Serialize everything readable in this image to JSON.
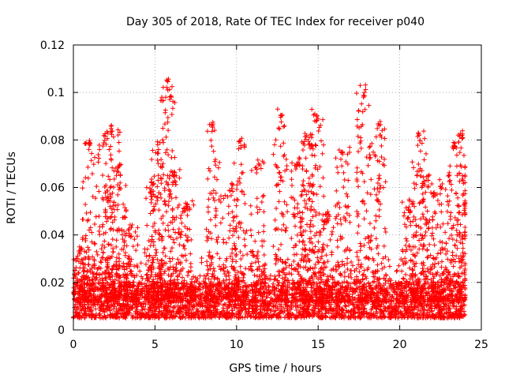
{
  "chart_data": {
    "type": "scatter",
    "title": "Day 305 of 2018, Rate Of TEC Index for receiver p040",
    "xlabel": "GPS time / hours",
    "ylabel": "ROTI / TECUs",
    "xlim": [
      0,
      25
    ],
    "ylim": [
      0,
      0.12
    ],
    "x_ticks": [
      0,
      5,
      10,
      15,
      20,
      25
    ],
    "x_tick_labels": [
      "0",
      "5",
      "10",
      "15",
      "20",
      "25"
    ],
    "y_ticks": [
      0,
      0.02,
      0.04,
      0.06,
      0.08,
      0.1,
      0.12
    ],
    "y_tick_labels": [
      "0",
      "0.02",
      "0.04",
      "0.06",
      "0.08",
      "0.1",
      "0.12"
    ],
    "grid": true,
    "marker": "+",
    "marker_color": "#ff0000",
    "series": [
      {
        "name": "ROTI",
        "x_range": [
          0,
          24
        ],
        "baseline_band": [
          0.005,
          0.02
        ],
        "bursts": [
          {
            "center": 0.5,
            "peak": 0.035
          },
          {
            "center": 1.0,
            "peak": 0.08
          },
          {
            "center": 1.9,
            "peak": 0.083
          },
          {
            "center": 2.4,
            "peak": 0.087
          },
          {
            "center": 2.8,
            "peak": 0.07
          },
          {
            "center": 3.5,
            "peak": 0.045
          },
          {
            "center": 4.8,
            "peak": 0.063
          },
          {
            "center": 5.2,
            "peak": 0.08
          },
          {
            "center": 5.8,
            "peak": 0.107
          },
          {
            "center": 6.2,
            "peak": 0.068
          },
          {
            "center": 7.0,
            "peak": 0.055
          },
          {
            "center": 8.6,
            "peak": 0.088
          },
          {
            "center": 9.6,
            "peak": 0.062
          },
          {
            "center": 10.2,
            "peak": 0.082
          },
          {
            "center": 11.3,
            "peak": 0.072
          },
          {
            "center": 12.7,
            "peak": 0.093
          },
          {
            "center": 13.8,
            "peak": 0.074
          },
          {
            "center": 14.3,
            "peak": 0.083
          },
          {
            "center": 14.9,
            "peak": 0.093
          },
          {
            "center": 15.5,
            "peak": 0.05
          },
          {
            "center": 16.5,
            "peak": 0.077
          },
          {
            "center": 17.8,
            "peak": 0.104
          },
          {
            "center": 18.7,
            "peak": 0.088
          },
          {
            "center": 20.6,
            "peak": 0.055
          },
          {
            "center": 21.2,
            "peak": 0.085
          },
          {
            "center": 21.7,
            "peak": 0.066
          },
          {
            "center": 22.5,
            "peak": 0.065
          },
          {
            "center": 23.4,
            "peak": 0.082
          },
          {
            "center": 23.9,
            "peak": 0.085
          }
        ]
      }
    ]
  }
}
